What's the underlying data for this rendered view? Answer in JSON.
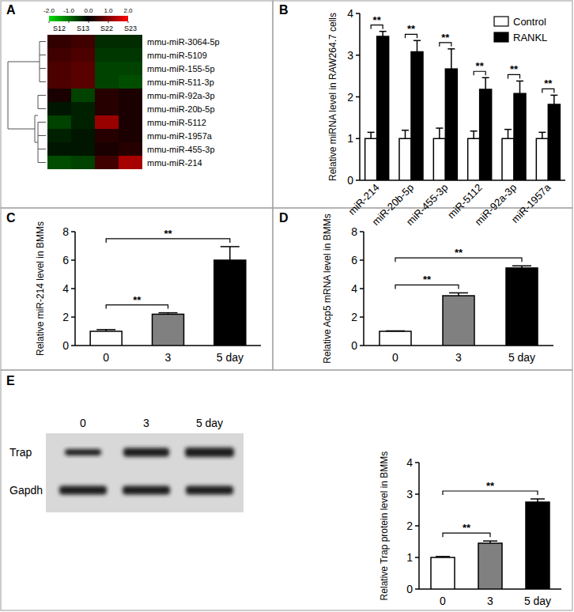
{
  "chart_data": [
    {
      "type": "heatmap",
      "panel": "A",
      "x": [
        "S12",
        "S13",
        "S22",
        "S23"
      ],
      "y": [
        "mmu-miR-3064-5p",
        "mmu-miR-5109",
        "mmu-miR-155-5p",
        "mmu-miR-511-3p",
        "mmu-miR-92a-3p",
        "mmu-miR-20b-5p",
        "mmu-miR-5112",
        "mmu-miR-1957a",
        "mmu-miR-455-3p",
        "mmu-miR-214"
      ],
      "cells": [
        [
          0.4,
          0.5,
          -0.4,
          -0.4
        ],
        [
          0.5,
          0.6,
          -0.5,
          -0.5
        ],
        [
          0.6,
          0.7,
          -0.6,
          -0.6
        ],
        [
          0.6,
          0.7,
          -0.6,
          -0.7
        ],
        [
          0.2,
          -0.6,
          0.3,
          0.2
        ],
        [
          -0.2,
          -0.3,
          0.3,
          0.2
        ],
        [
          -0.6,
          -0.3,
          1.2,
          0.2
        ],
        [
          -0.3,
          -0.2,
          0.3,
          0.2
        ],
        [
          -0.2,
          -0.2,
          0.2,
          0.3
        ],
        [
          -0.7,
          -0.6,
          0.5,
          1.3
        ]
      ],
      "colorbar": {
        "range": [
          -2,
          2
        ],
        "ticks": [
          {
            "value": -2,
            "label": "-2.0"
          },
          {
            "value": -1,
            "label": "-1.0"
          },
          {
            "value": 0,
            "label": "0.0"
          },
          {
            "value": 1,
            "label": "1.0"
          },
          {
            "value": 2,
            "label": "2.0"
          }
        ]
      }
    },
    {
      "type": "bar",
      "panel": "B",
      "ylabel": "Relative miRNA level in RAW264.7 cells",
      "categories": [
        "miR-214",
        "miR-20b-5p",
        "miR-455-3p",
        "miR-5112",
        "miR-92a-3p",
        "miR-1957a"
      ],
      "series": [
        {
          "name": "Control",
          "color": "#ffffff",
          "values": [
            1,
            1,
            1,
            1,
            1,
            1
          ],
          "errors": [
            0.15,
            0.2,
            0.25,
            0.18,
            0.22,
            0.15
          ]
        },
        {
          "name": "RANKL",
          "color": "#000000",
          "values": [
            3.45,
            3.08,
            2.67,
            2.18,
            2.08,
            1.82
          ],
          "errors": [
            0.12,
            0.27,
            0.48,
            0.28,
            0.3,
            0.22
          ]
        }
      ],
      "ylim": [
        0,
        4
      ],
      "yticks": [
        0,
        1,
        2,
        3,
        4
      ],
      "legend": "top-right",
      "significance": [
        "**",
        "**",
        "**",
        "**",
        "**",
        "**"
      ]
    },
    {
      "type": "bar",
      "panel": "C",
      "ylabel": "Relative miR-214 level in BMMs",
      "categories": [
        "0",
        "3",
        "5 day"
      ],
      "values": [
        1.0,
        2.2,
        6.0
      ],
      "errors": [
        0.12,
        0.1,
        0.95
      ],
      "colors": [
        "#ffffff",
        "#808080",
        "#000000"
      ],
      "ylim": [
        0,
        8
      ],
      "yticks": [
        0,
        2,
        4,
        6,
        8
      ],
      "comparisons": [
        {
          "pair": [
            0,
            1
          ],
          "label": "**"
        },
        {
          "pair": [
            0,
            2
          ],
          "label": "**"
        }
      ]
    },
    {
      "type": "bar",
      "panel": "D",
      "ylabel": "Relative Acp5 mRNA level in BMMs",
      "categories": [
        "0",
        "3",
        "5 day"
      ],
      "values": [
        1.0,
        3.5,
        5.45
      ],
      "errors": [
        0.03,
        0.2,
        0.15
      ],
      "colors": [
        "#ffffff",
        "#808080",
        "#000000"
      ],
      "ylim": [
        0,
        8
      ],
      "yticks": [
        0,
        2,
        4,
        6,
        8
      ],
      "comparisons": [
        {
          "pair": [
            0,
            1
          ],
          "label": "**"
        },
        {
          "pair": [
            0,
            2
          ],
          "label": "**"
        }
      ]
    },
    {
      "type": "blot",
      "panel": "E",
      "lanes": [
        "0",
        "3",
        "5 day"
      ],
      "rows": [
        "Trap",
        "Gapdh"
      ]
    },
    {
      "type": "bar",
      "ylabel": "Relative Trap protein level in BMMs",
      "categories": [
        "0",
        "3",
        "5 day"
      ],
      "values": [
        1.0,
        1.45,
        2.75
      ],
      "errors": [
        0.03,
        0.07,
        0.1
      ],
      "colors": [
        "#ffffff",
        "#808080",
        "#000000"
      ],
      "ylim": [
        0,
        4
      ],
      "yticks": [
        0,
        1,
        2,
        3,
        4
      ],
      "comparisons": [
        {
          "pair": [
            0,
            1
          ],
          "label": "**"
        },
        {
          "pair": [
            0,
            2
          ],
          "label": "**"
        }
      ]
    }
  ]
}
